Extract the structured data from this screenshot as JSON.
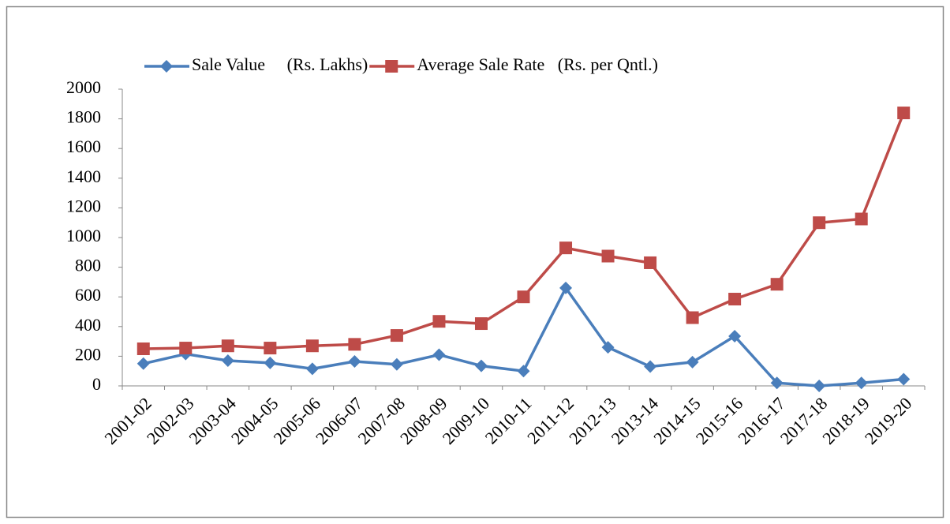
{
  "chart_data": {
    "type": "line",
    "categories": [
      "2001-02",
      "2002-03",
      "2003-04",
      "2004-05",
      "2005-06",
      "2006-07",
      "2007-08",
      "2008-09",
      "2009-10",
      "2010-11",
      "2011-12",
      "2012-13",
      "2013-14",
      "2014-15",
      "2015-16",
      "2016-17",
      "2017-18",
      "2018-19",
      "2019-20"
    ],
    "series": [
      {
        "name": "Sale Value     (Rs. Lakhs)",
        "color": "#4a7ebb",
        "marker": "diamond",
        "values": [
          150,
          215,
          170,
          155,
          115,
          165,
          145,
          210,
          135,
          100,
          660,
          260,
          130,
          160,
          335,
          20,
          0,
          20,
          45
        ]
      },
      {
        "name": "Average Sale Rate   (Rs. per Qntl.)",
        "color": "#be4b48",
        "marker": "square",
        "values": [
          250,
          255,
          270,
          255,
          270,
          280,
          340,
          435,
          420,
          600,
          930,
          875,
          830,
          460,
          585,
          685,
          1100,
          1125,
          1840
        ]
      }
    ],
    "ylim": [
      0,
      2000
    ],
    "yticks": [
      0,
      200,
      400,
      600,
      800,
      1000,
      1200,
      1400,
      1600,
      1800,
      2000
    ],
    "legend": "top"
  }
}
